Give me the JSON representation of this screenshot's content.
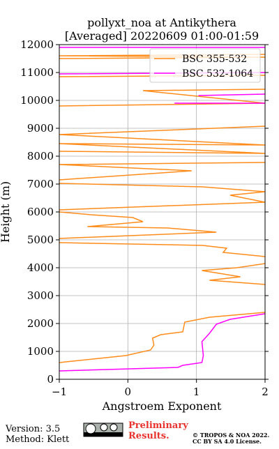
{
  "chart_data": {
    "type": "line",
    "title": "pollyxt_noa at Antikythera",
    "subtitle": "[Averaged] 20220609 01:00-01:59",
    "xlabel": "Angstroem Exponent",
    "ylabel": "Height (m)",
    "xlim": [
      -1,
      2
    ],
    "ylim": [
      0,
      12000
    ],
    "xticks": [
      {
        "value": -1,
        "label": "−1"
      },
      0,
      1,
      2
    ],
    "yticks": [
      0,
      1000,
      2000,
      3000,
      4000,
      5000,
      6000,
      7000,
      8000,
      9000,
      10000,
      11000,
      12000
    ],
    "grid": true,
    "legend": "upper right",
    "series": [
      {
        "name": "BSC 355-532",
        "color": "#ff8c1a",
        "x": [
          -1,
          -0.03,
          0.33,
          0.38,
          0.36,
          0.48,
          0.8,
          0.83,
          1.19,
          2,
          null,
          2,
          1.19,
          1.64,
          1.08,
          1.59,
          2,
          null,
          2,
          1.39,
          1.44,
          1.09,
          -1,
          null,
          -1,
          1.29,
          0.58,
          -0.59,
          0.22,
          0.07,
          -0.54,
          -1,
          null,
          -1,
          2,
          1.49,
          2,
          1.09,
          -1,
          null,
          -1,
          0.93,
          -1,
          2,
          null,
          -1,
          2,
          -1,
          2,
          -1,
          2,
          null,
          -1,
          2,
          0.22,
          2,
          null,
          -1,
          2,
          null,
          -1,
          2,
          -1,
          2
        ],
        "y": [
          600,
          850,
          1050,
          1225,
          1475,
          1600,
          1700,
          2050,
          2225,
          2400,
          null,
          3400,
          3550,
          3675,
          3900,
          4000,
          4150,
          null,
          4400,
          4550,
          4700,
          4800,
          4900,
          null,
          5050,
          5275,
          5425,
          5475,
          5650,
          5800,
          5900,
          6000,
          null,
          6075,
          6350,
          6600,
          6725,
          6900,
          7025,
          null,
          7150,
          7475,
          7700,
          7775,
          null,
          8175,
          8100,
          8450,
          8400,
          8775,
          9075,
          null,
          9800,
          9900,
          10350,
          10400,
          null,
          10850,
          10900,
          null,
          11500,
          11550,
          11600,
          11650
        ]
      },
      {
        "name": "BSC 532-1064",
        "color": "#ff00ff",
        "x": [
          -1,
          0.73,
          0.8,
          1.08,
          1.1,
          1.08,
          1.19,
          1.29,
          1.49,
          2,
          null,
          0.68,
          2,
          null,
          1.03,
          2,
          null,
          -1,
          2,
          null,
          -1,
          2
        ],
        "y": [
          300,
          425,
          500,
          600,
          850,
          1350,
          1650,
          1975,
          2150,
          2350,
          null,
          9900,
          9900,
          null,
          10175,
          10225,
          null,
          10950,
          11000,
          null,
          11900,
          11900
        ]
      }
    ]
  },
  "footer": {
    "version": "Version: 3.5",
    "method": "Method: Klett",
    "preliminary": "Preliminary",
    "results": "Results.",
    "copyright": "© TROPOS & NOA 2022.",
    "license": "CC BY SA 4.0 License."
  }
}
